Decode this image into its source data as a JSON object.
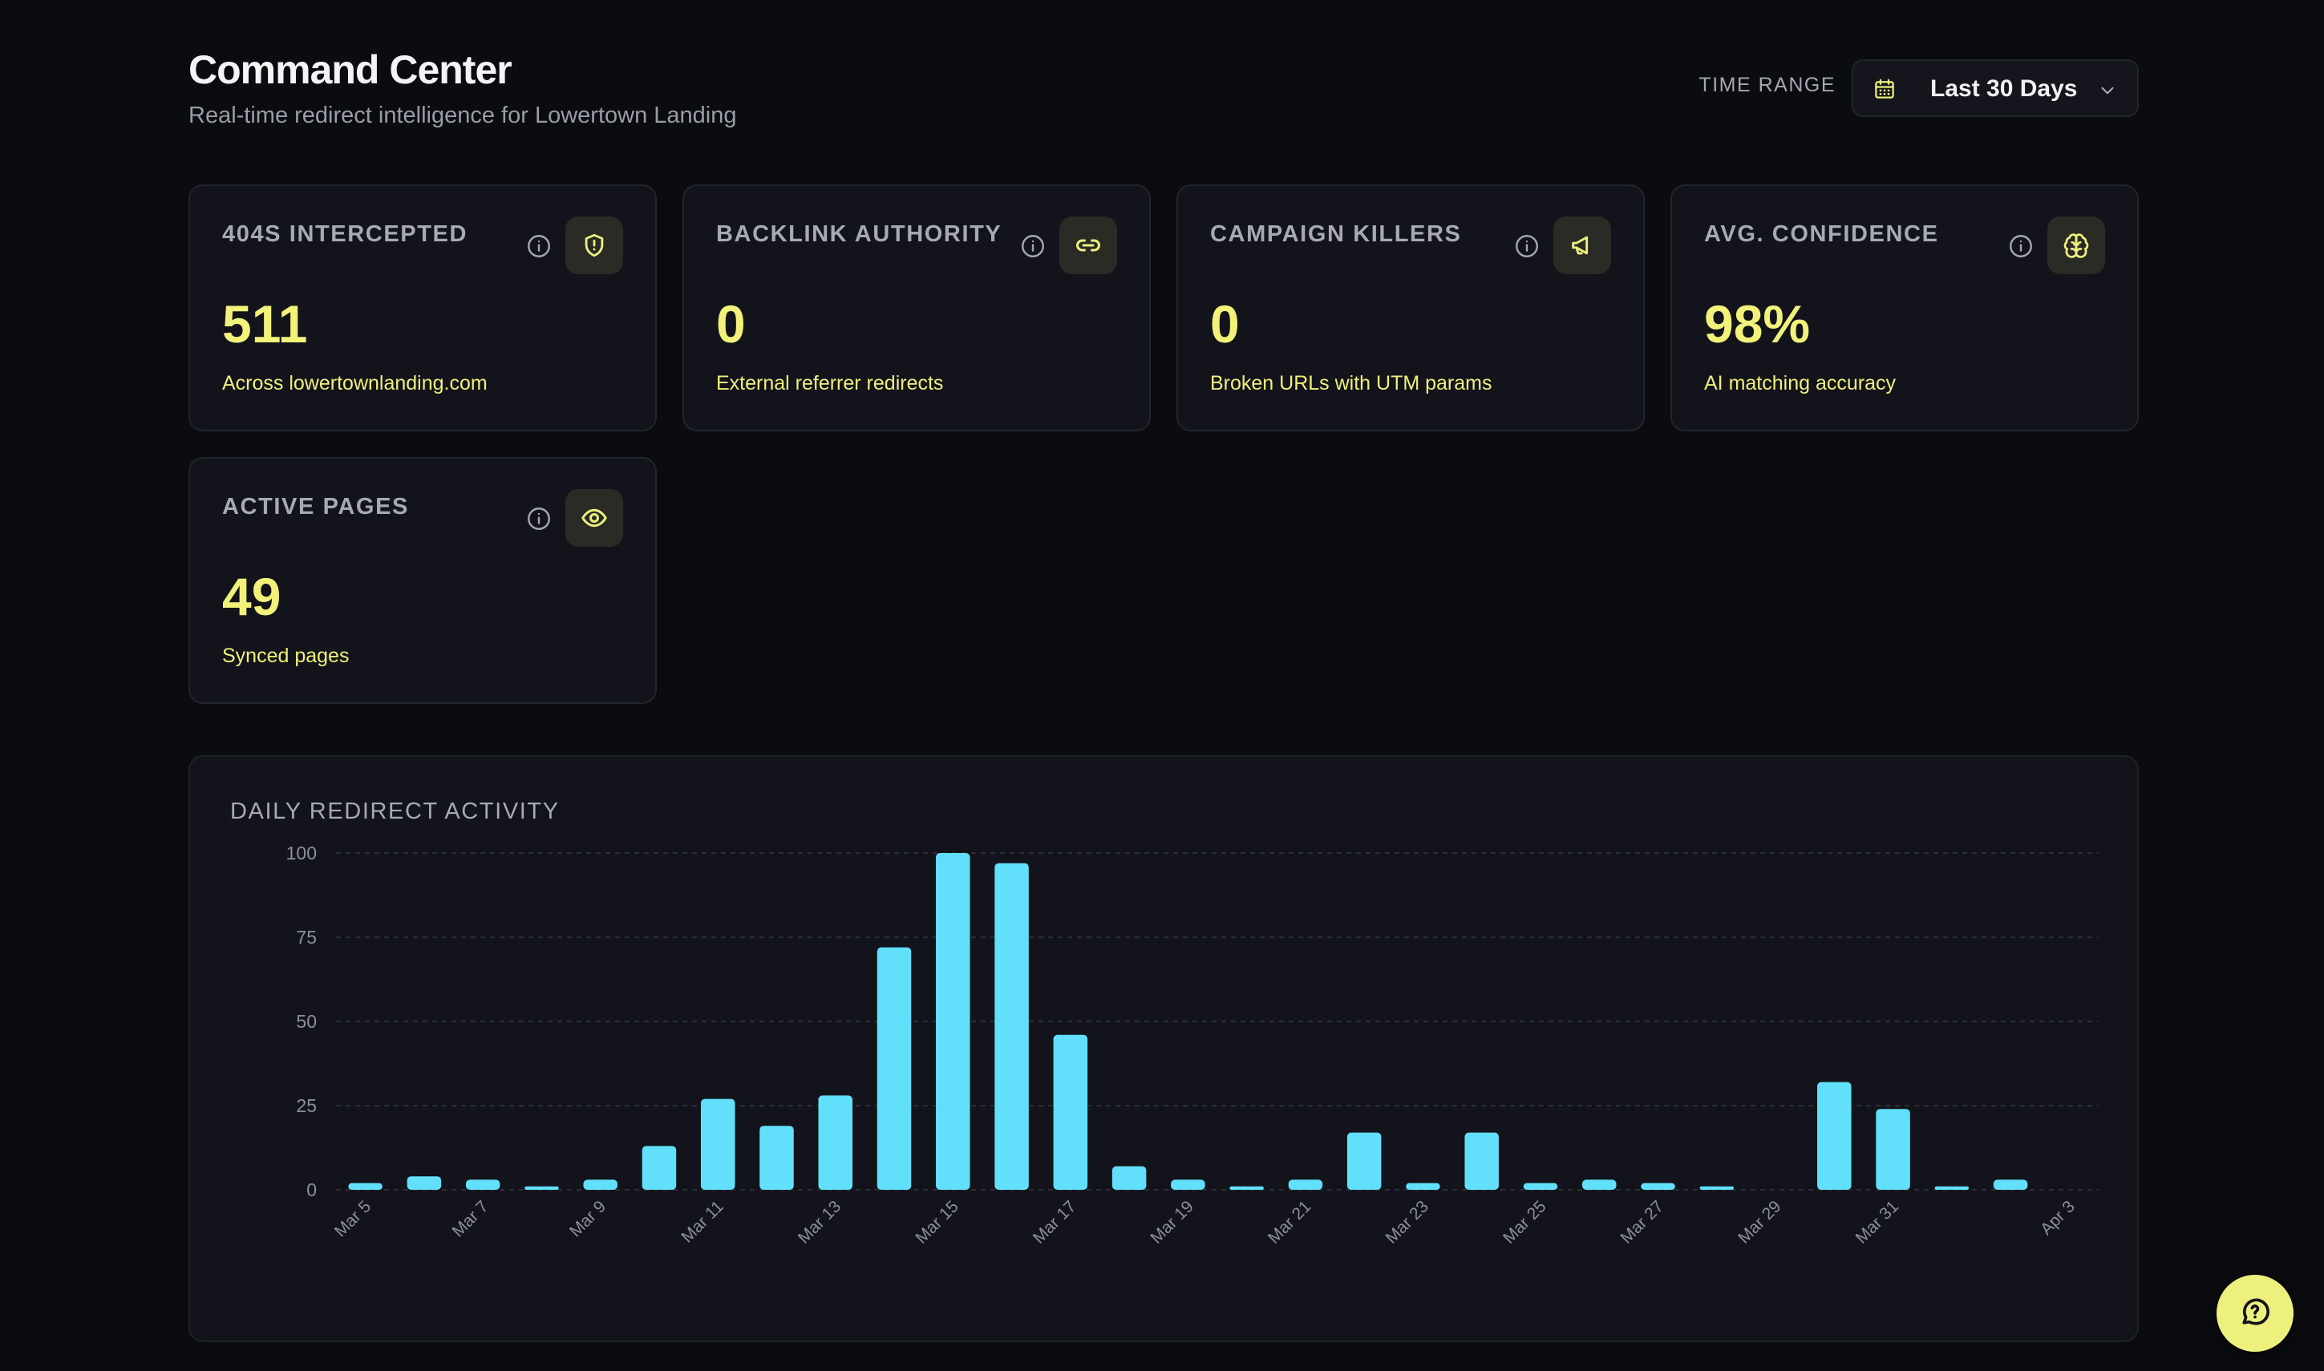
{
  "header": {
    "title": "Command Center",
    "subtitle": "Real-time redirect intelligence for Lowertown Landing",
    "time_range_label": "TIME RANGE",
    "time_range_value": "Last 30 Days"
  },
  "cards": [
    {
      "label": "404S INTERCEPTED",
      "value": "511",
      "description": "Across lowertownlanding.com",
      "icon": "shield-icon"
    },
    {
      "label": "BACKLINK AUTHORITY",
      "value": "0",
      "description": "External referrer redirects",
      "icon": "link-icon"
    },
    {
      "label": "CAMPAIGN KILLERS",
      "value": "0",
      "description": "Broken URLs with UTM params",
      "icon": "megaphone-icon"
    },
    {
      "label": "AVG. CONFIDENCE",
      "value": "98%",
      "description": "AI matching accuracy",
      "icon": "brain-icon"
    },
    {
      "label": "ACTIVE PAGES",
      "value": "49",
      "description": "Synced pages",
      "icon": "eye-icon"
    }
  ],
  "colors": {
    "accent": "#eef07e",
    "bar": "#62e0fb",
    "background": "#0b0c10",
    "card": "#13141b"
  },
  "chart_title": "DAILY REDIRECT ACTIVITY",
  "chart_data": {
    "type": "bar",
    "title": "DAILY REDIRECT ACTIVITY",
    "categories": [
      "Mar 5",
      "Mar 6",
      "Mar 7",
      "Mar 8",
      "Mar 9",
      "Mar 10",
      "Mar 11",
      "Mar 12",
      "Mar 13",
      "Mar 14",
      "Mar 15",
      "Mar 16",
      "Mar 17",
      "Mar 18",
      "Mar 19",
      "Mar 20",
      "Mar 21",
      "Mar 22",
      "Mar 23",
      "Mar 24",
      "Mar 25",
      "Mar 26",
      "Mar 27",
      "Mar 28",
      "Mar 29",
      "Mar 30",
      "Mar 31",
      "Apr 1",
      "Apr 2",
      "Apr 3"
    ],
    "values": [
      2,
      4,
      3,
      1,
      3,
      13,
      27,
      19,
      28,
      72,
      100,
      97,
      46,
      7,
      3,
      1,
      3,
      17,
      2,
      17,
      2,
      3,
      2,
      1,
      0,
      32,
      24,
      1,
      3,
      0
    ],
    "x_tick_labels": [
      "Mar 5",
      "Mar 7",
      "Mar 9",
      "Mar 11",
      "Mar 13",
      "Mar 15",
      "Mar 17",
      "Mar 19",
      "Mar 21",
      "Mar 23",
      "Mar 25",
      "Mar 27",
      "Mar 29",
      "Mar 31",
      "Apr 3"
    ],
    "y_ticks": [
      0,
      25,
      50,
      75,
      100
    ],
    "ylim": [
      0,
      100
    ],
    "grid": true,
    "xlabel": "",
    "ylabel": ""
  }
}
